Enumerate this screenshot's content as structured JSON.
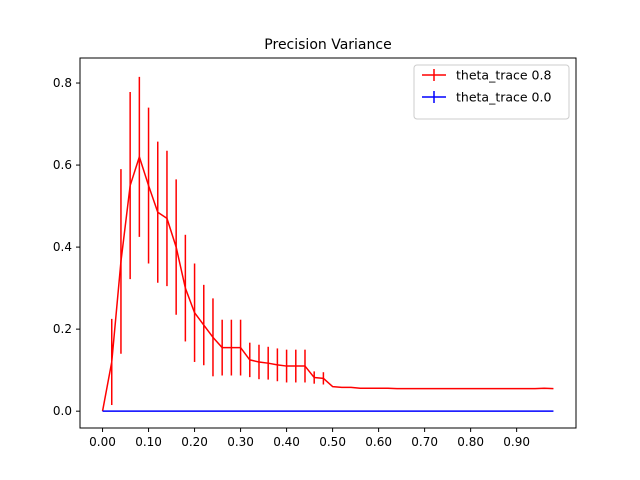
{
  "chart_data": {
    "type": "line",
    "title": "Precision Variance",
    "xlabel": "",
    "ylabel": "",
    "xlim": [
      -0.049,
      1.029
    ],
    "ylim": [
      -0.041,
      0.861
    ],
    "x_ticks": [
      0.0,
      0.1,
      0.2,
      0.3,
      0.4,
      0.5,
      0.6,
      0.7,
      0.8,
      0.9
    ],
    "x_tick_labels": [
      "0.00",
      "0.10",
      "0.20",
      "0.30",
      "0.40",
      "0.50",
      "0.60",
      "0.70",
      "0.80",
      "0.90"
    ],
    "y_ticks": [
      0.0,
      0.2,
      0.4,
      0.6,
      0.8
    ],
    "y_tick_labels": [
      "0.0",
      "0.2",
      "0.4",
      "0.6",
      "0.8"
    ],
    "grid": false,
    "legend": "top-right",
    "x": [
      0.0,
      0.02,
      0.04,
      0.06,
      0.08,
      0.1,
      0.12,
      0.14,
      0.16,
      0.18,
      0.2,
      0.22,
      0.24,
      0.26,
      0.28,
      0.3,
      0.32,
      0.34,
      0.36,
      0.38,
      0.4,
      0.42,
      0.44,
      0.46,
      0.48,
      0.5,
      0.52,
      0.54,
      0.56,
      0.58,
      0.6,
      0.62,
      0.64,
      0.66,
      0.68,
      0.7,
      0.72,
      0.74,
      0.76,
      0.78,
      0.8,
      0.82,
      0.84,
      0.86,
      0.88,
      0.9,
      0.92,
      0.94,
      0.96,
      0.98
    ],
    "series": [
      {
        "name": "theta_trace 0.8",
        "color": "#ff0000",
        "values": [
          0.0,
          0.12,
          0.365,
          0.55,
          0.62,
          0.55,
          0.485,
          0.47,
          0.4,
          0.3,
          0.24,
          0.21,
          0.18,
          0.155,
          0.155,
          0.155,
          0.125,
          0.12,
          0.117,
          0.113,
          0.11,
          0.11,
          0.11,
          0.082,
          0.08,
          0.06,
          0.058,
          0.058,
          0.056,
          0.056,
          0.056,
          0.056,
          0.055,
          0.055,
          0.055,
          0.055,
          0.055,
          0.055,
          0.055,
          0.055,
          0.055,
          0.055,
          0.055,
          0.055,
          0.055,
          0.055,
          0.055,
          0.055,
          0.056,
          0.055
        ],
        "errors": [
          0.0,
          0.105,
          0.225,
          0.228,
          0.195,
          0.19,
          0.172,
          0.165,
          0.165,
          0.13,
          0.12,
          0.098,
          0.095,
          0.068,
          0.068,
          0.068,
          0.042,
          0.042,
          0.04,
          0.04,
          0.04,
          0.04,
          0.04,
          0.015,
          0.015,
          0.0,
          0.0,
          0.0,
          0.0,
          0.0,
          0.0,
          0.0,
          0.0,
          0.0,
          0.0,
          0.0,
          0.0,
          0.0,
          0.0,
          0.0,
          0.0,
          0.0,
          0.0,
          0.0,
          0.0,
          0.0,
          0.0,
          0.0,
          0.0,
          0.0
        ]
      },
      {
        "name": "theta_trace 0.0",
        "color": "#0000ff",
        "values": [
          0,
          0,
          0,
          0,
          0,
          0,
          0,
          0,
          0,
          0,
          0,
          0,
          0,
          0,
          0,
          0,
          0,
          0,
          0,
          0,
          0,
          0,
          0,
          0,
          0,
          0,
          0,
          0,
          0,
          0,
          0,
          0,
          0,
          0,
          0,
          0,
          0,
          0,
          0,
          0,
          0,
          0,
          0,
          0,
          0,
          0,
          0,
          0,
          0,
          0
        ],
        "errors": [
          0,
          0,
          0,
          0,
          0,
          0,
          0,
          0,
          0,
          0,
          0,
          0,
          0,
          0,
          0,
          0,
          0,
          0,
          0,
          0,
          0,
          0,
          0,
          0,
          0,
          0,
          0,
          0,
          0,
          0,
          0,
          0,
          0,
          0,
          0,
          0,
          0,
          0,
          0,
          0,
          0,
          0,
          0,
          0,
          0,
          0,
          0,
          0,
          0,
          0
        ]
      }
    ]
  }
}
